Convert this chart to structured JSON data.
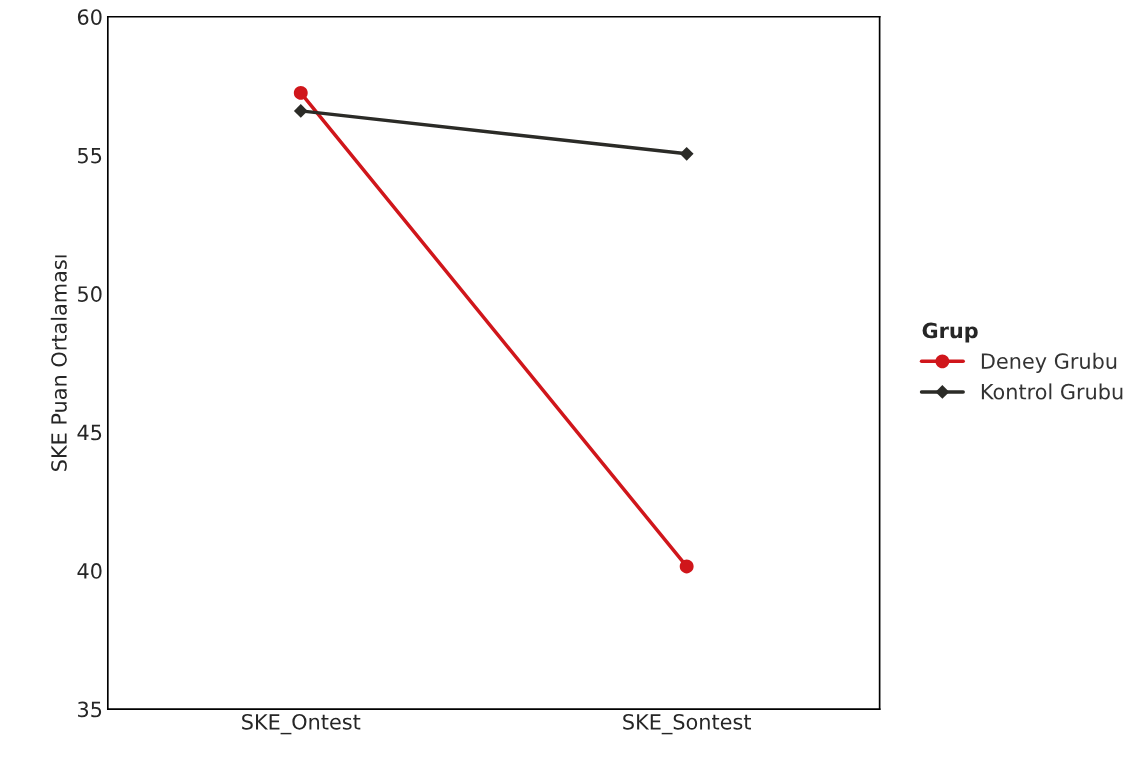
{
  "chart_data": {
    "type": "line",
    "ylabel": "SKE Puan Ortalaması",
    "categories": [
      "SKE_Ontest",
      "SKE_Sontest"
    ],
    "series": [
      {
        "name": "Deney Grubu",
        "color": "#d0161b",
        "values": [
          57.25,
          40.15
        ],
        "marker": "circle"
      },
      {
        "name": "Kontrol Grubu",
        "color": "#2b2b27",
        "values": [
          56.6,
          55.05
        ],
        "marker": "diamond"
      }
    ],
    "ylim": [
      35,
      60
    ],
    "yticks": [
      35,
      40,
      45,
      50,
      55,
      60
    ],
    "legend": "right",
    "legend_title": "Grup",
    "grid": false
  }
}
